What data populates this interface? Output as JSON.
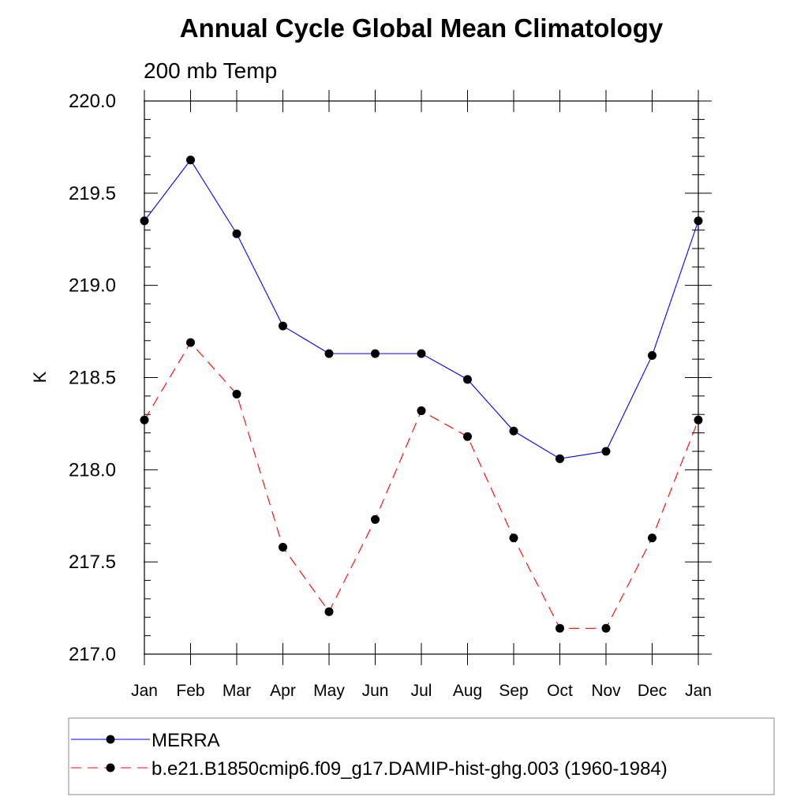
{
  "chart_data": {
    "type": "line",
    "title": "Annual Cycle Global Mean Climatology",
    "subtitle": "200 mb Temp",
    "xlabel": "",
    "ylabel": "K",
    "categories": [
      "Jan",
      "Feb",
      "Mar",
      "Apr",
      "May",
      "Jun",
      "Jul",
      "Aug",
      "Sep",
      "Oct",
      "Nov",
      "Dec",
      "Jan"
    ],
    "ylim": [
      217.0,
      220.0
    ],
    "yticks": [
      "217.0",
      "217.5",
      "218.0",
      "218.5",
      "219.0",
      "219.5",
      "220.0"
    ],
    "grid": false,
    "legend_position": "bottom",
    "series": [
      {
        "name": "MERRA",
        "color": "#0000ff",
        "style": "solid",
        "marker": "filled-circle",
        "values": [
          219.35,
          219.68,
          219.28,
          218.78,
          218.63,
          218.63,
          218.63,
          218.49,
          218.21,
          218.06,
          218.1,
          218.62,
          219.35
        ]
      },
      {
        "name": "b.e21.B1850cmip6.f09_g17.DAMIP-hist-ghg.003 (1960-1984)",
        "color": "#ff0000",
        "style": "dashed",
        "marker": "filled-circle",
        "values": [
          218.27,
          218.69,
          218.41,
          217.58,
          217.23,
          217.73,
          218.32,
          218.18,
          217.63,
          217.14,
          217.14,
          217.63,
          218.27
        ]
      }
    ]
  }
}
